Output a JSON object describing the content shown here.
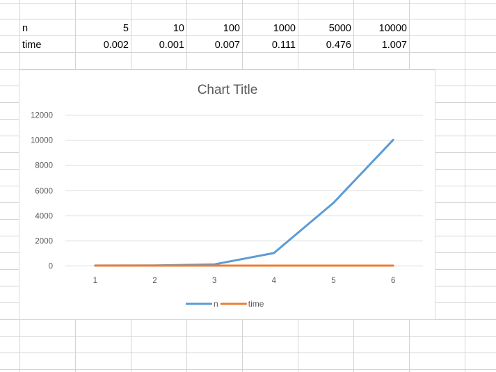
{
  "table": {
    "rows": [
      {
        "label": "n",
        "values": [
          "5",
          "10",
          "100",
          "1000",
          "5000",
          "10000"
        ]
      },
      {
        "label": "time",
        "values": [
          "0.002",
          "0.001",
          "0.007",
          "0.111",
          "0.476",
          "1.007"
        ]
      }
    ]
  },
  "colors": {
    "gridline": "#d9d9d9",
    "sheet_grid": "#d4d4d4",
    "axis_text": "#595959",
    "series_n": "#5b9bd5",
    "series_time": "#ed7d31"
  },
  "chart_data": {
    "type": "line",
    "title": "Chart Title",
    "xlabel": "",
    "ylabel": "",
    "x": [
      1,
      2,
      3,
      4,
      5,
      6
    ],
    "categories": [
      "1",
      "2",
      "3",
      "4",
      "5",
      "6"
    ],
    "ylim": [
      0,
      12000
    ],
    "yticks": [
      "0",
      "2000",
      "4000",
      "6000",
      "8000",
      "10000",
      "12000"
    ],
    "grid": true,
    "legend_position": "bottom",
    "series": [
      {
        "name": "n",
        "values": [
          5,
          10,
          100,
          1000,
          5000,
          10000
        ],
        "color": "#5b9bd5"
      },
      {
        "name": "time",
        "values": [
          0.002,
          0.001,
          0.007,
          0.111,
          0.476,
          1.007
        ],
        "color": "#ed7d31"
      }
    ]
  }
}
